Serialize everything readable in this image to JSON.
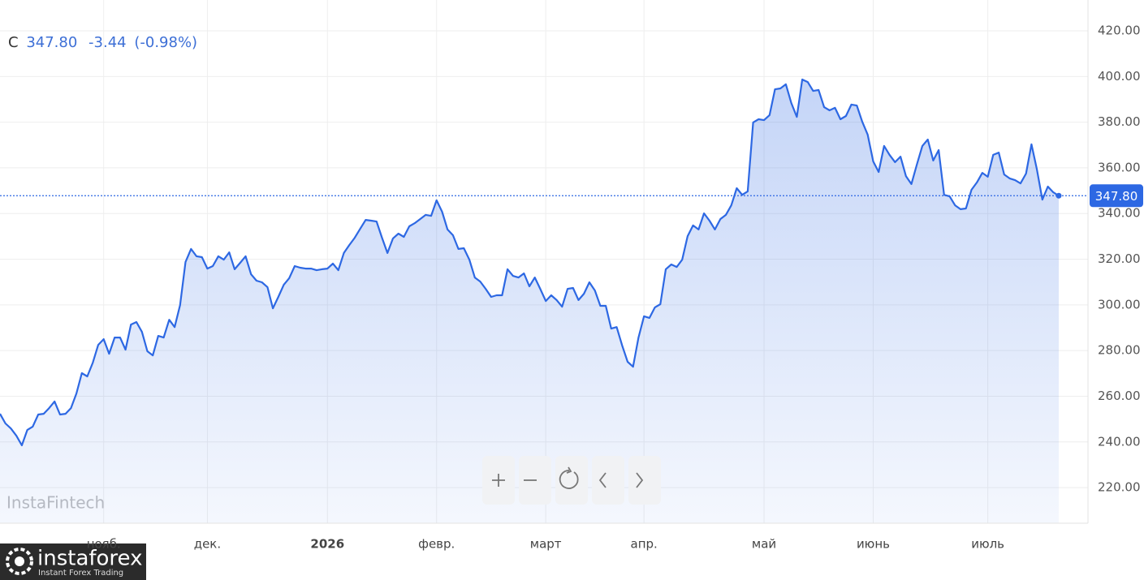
{
  "header": {
    "symbol": "C",
    "close": "347.80",
    "change": "-3.44",
    "change_pct": "(-0.98%)"
  },
  "watermark": "InstaFintech",
  "logo": {
    "name": "instaforex",
    "tagline": "Instant Forex Trading"
  },
  "chart_data": {
    "type": "area",
    "color": "#2d68e3",
    "grid": true,
    "ylim": [
      204.4,
      433.5
    ],
    "yticks": [
      {
        "value": 220,
        "label": "220.00"
      },
      {
        "value": 240,
        "label": "240.00"
      },
      {
        "value": 260,
        "label": "260.00"
      },
      {
        "value": 280,
        "label": "280.00"
      },
      {
        "value": 300,
        "label": "300.00"
      },
      {
        "value": 320,
        "label": "320.00"
      },
      {
        "value": 340,
        "label": "340.00"
      },
      {
        "value": 360,
        "label": "360.00"
      },
      {
        "value": 380,
        "label": "380.00"
      },
      {
        "value": 400,
        "label": "400.00"
      },
      {
        "value": 420,
        "label": "420.00"
      }
    ],
    "last_label": "347.80",
    "categories": [
      null,
      null,
      null,
      null,
      null,
      null,
      null,
      null,
      null,
      null,
      null,
      null,
      null,
      null,
      null,
      null,
      null,
      null,
      null,
      "нояб.",
      null,
      null,
      null,
      null,
      null,
      null,
      null,
      null,
      null,
      null,
      null,
      null,
      null,
      null,
      null,
      null,
      null,
      null,
      "дек.",
      null,
      null,
      null,
      null,
      null,
      null,
      null,
      null,
      null,
      null,
      null,
      null,
      null,
      null,
      null,
      null,
      null,
      null,
      null,
      null,
      null,
      "2026",
      null,
      null,
      null,
      null,
      null,
      null,
      null,
      null,
      null,
      null,
      null,
      null,
      null,
      null,
      null,
      null,
      null,
      null,
      null,
      "февр.",
      null,
      null,
      null,
      null,
      null,
      null,
      null,
      null,
      null,
      null,
      null,
      null,
      null,
      null,
      null,
      null,
      null,
      null,
      null,
      "март",
      null,
      null,
      null,
      null,
      null,
      null,
      null,
      null,
      null,
      null,
      null,
      null,
      null,
      null,
      null,
      null,
      null,
      "апр.",
      null,
      null,
      null,
      null,
      null,
      null,
      null,
      null,
      null,
      null,
      null,
      null,
      null,
      null,
      null,
      null,
      null,
      null,
      null,
      null,
      null,
      "май",
      null,
      null,
      null,
      null,
      null,
      null,
      null,
      null,
      null,
      null,
      null,
      null,
      null,
      null,
      null,
      null,
      null,
      null,
      null,
      "июнь",
      null,
      null,
      null,
      null,
      null,
      null,
      null,
      null,
      null,
      null,
      null,
      null,
      null,
      null,
      null,
      null,
      null,
      null,
      null,
      null,
      "июль",
      null,
      null,
      null,
      null,
      null,
      null,
      null,
      null,
      null,
      null,
      null,
      null,
      null
    ],
    "series": [
      {
        "values": [
          252.3,
          248.1,
          245.9,
          242.7,
          238.5,
          245.2,
          246.7,
          252.0,
          252.3,
          254.8,
          257.7,
          252.0,
          252.3,
          254.8,
          261.2,
          270.1,
          268.7,
          274.7,
          282.5,
          285.0,
          278.6,
          285.7,
          285.7,
          280.4,
          291.4,
          292.5,
          288.2,
          279.7,
          277.9,
          286.4,
          285.7,
          293.5,
          290.3,
          299.9,
          318.8,
          324.5,
          321.3,
          320.9,
          315.9,
          317.0,
          321.3,
          319.8,
          323.0,
          315.6,
          318.4,
          321.3,
          313.4,
          310.6,
          309.9,
          307.8,
          298.5,
          303.5,
          308.8,
          311.7,
          317.0,
          316.3,
          315.9,
          315.9,
          315.2,
          315.6,
          315.9,
          318.1,
          315.2,
          322.7,
          326.2,
          329.4,
          333.3,
          337.2,
          336.9,
          336.5,
          329.4,
          322.7,
          329.1,
          331.2,
          329.8,
          334.4,
          335.8,
          337.6,
          339.4,
          339.0,
          345.8,
          340.8,
          333.0,
          330.5,
          324.5,
          324.8,
          319.8,
          312.0,
          310.2,
          307.0,
          303.5,
          304.2,
          304.2,
          315.6,
          312.7,
          312.0,
          313.8,
          308.1,
          312.0,
          307.0,
          301.7,
          304.2,
          302.1,
          299.2,
          307.0,
          307.4,
          302.1,
          304.9,
          309.9,
          306.3,
          299.6,
          299.6,
          289.6,
          290.3,
          282.2,
          275.1,
          272.9,
          285.7,
          295.0,
          294.3,
          298.9,
          300.3,
          315.6,
          317.7,
          316.6,
          319.8,
          330.1,
          334.8,
          333.0,
          340.1,
          336.9,
          333.0,
          337.6,
          339.4,
          343.6,
          351.1,
          348.2,
          349.7,
          379.9,
          381.3,
          380.9,
          383.1,
          394.4,
          394.8,
          396.6,
          388.4,
          382.3,
          398.7,
          397.6,
          393.7,
          394.1,
          386.6,
          385.2,
          386.3,
          381.3,
          382.7,
          387.7,
          387.3,
          380.2,
          374.5,
          362.8,
          358.2,
          369.6,
          365.7,
          362.5,
          364.9,
          356.4,
          352.9,
          361.4,
          369.6,
          372.4,
          363.2,
          367.8,
          348.2,
          347.5,
          343.6,
          341.9,
          342.2,
          350.4,
          353.6,
          357.8,
          356.1,
          365.7,
          366.7,
          357.1,
          355.4,
          354.6,
          353.2,
          357.5,
          370.3,
          359.3,
          346.1,
          351.8,
          349.3,
          347.8
        ]
      }
    ]
  }
}
